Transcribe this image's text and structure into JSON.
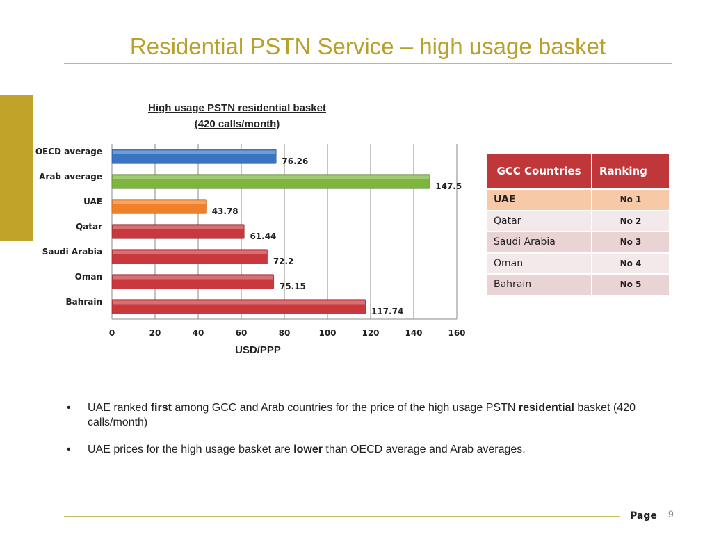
{
  "slide": {
    "title": "Residential PSTN Service – high usage basket",
    "page_label": "Page",
    "page_number": "9"
  },
  "colors": {
    "title": "#b8a02a",
    "accent": "#c2a32a",
    "oecd_bar": "#3a75c4",
    "arab_bar": "#7db63e",
    "uae_bar": "#f0812a",
    "gcc_bar": "#c8383d",
    "table_header": "#c0373a"
  },
  "chart_data": {
    "type": "bar",
    "orientation": "horizontal",
    "title_line1": "High usage PSTN residential basket",
    "title_line2": "(420 calls/month)",
    "xlabel": "USD/PPP",
    "ylabel": "",
    "xlim": [
      0,
      160
    ],
    "xticks": [
      0,
      20,
      40,
      60,
      80,
      100,
      120,
      140,
      160
    ],
    "grid": true,
    "legend": "none",
    "categories": [
      "OECD average",
      "Arab average",
      "UAE",
      "Qatar",
      "Saudi Arabia",
      "Oman",
      "Bahrain"
    ],
    "values": [
      76.26,
      147.5,
      43.78,
      61.44,
      72.2,
      75.15,
      117.74
    ],
    "value_labels": [
      "76.26",
      "147.5",
      "43.78",
      "61.44",
      "72.2",
      "75.15",
      "117.74"
    ],
    "bar_colors": [
      "#3a75c4",
      "#7db63e",
      "#f0812a",
      "#c8383d",
      "#c8383d",
      "#c8383d",
      "#c8383d"
    ]
  },
  "table": {
    "headers": [
      "GCC Countries",
      "Ranking"
    ],
    "rows": [
      {
        "country": "UAE",
        "rank": "No 1"
      },
      {
        "country": "Qatar",
        "rank": "No 2"
      },
      {
        "country": "Saudi Arabia",
        "rank": "No 3"
      },
      {
        "country": "Oman",
        "rank": "No 4"
      },
      {
        "country": "Bahrain",
        "rank": "No 5"
      }
    ]
  },
  "bullets": [
    {
      "marker": "•",
      "parts": [
        {
          "text": "UAE ranked ",
          "bold": false
        },
        {
          "text": "first",
          "bold": true
        },
        {
          "text": " among GCC and Arab countries for the price of the high usage PSTN ",
          "bold": false
        },
        {
          "text": "residential",
          "bold": true
        },
        {
          "text": " basket (420 calls/month)",
          "bold": false
        }
      ]
    },
    {
      "marker": "•",
      "parts": [
        {
          "text": "UAE prices for the high usage basket are ",
          "bold": false
        },
        {
          "text": "lower",
          "bold": true
        },
        {
          "text": " than OECD average and Arab averages.",
          "bold": false
        }
      ]
    }
  ]
}
